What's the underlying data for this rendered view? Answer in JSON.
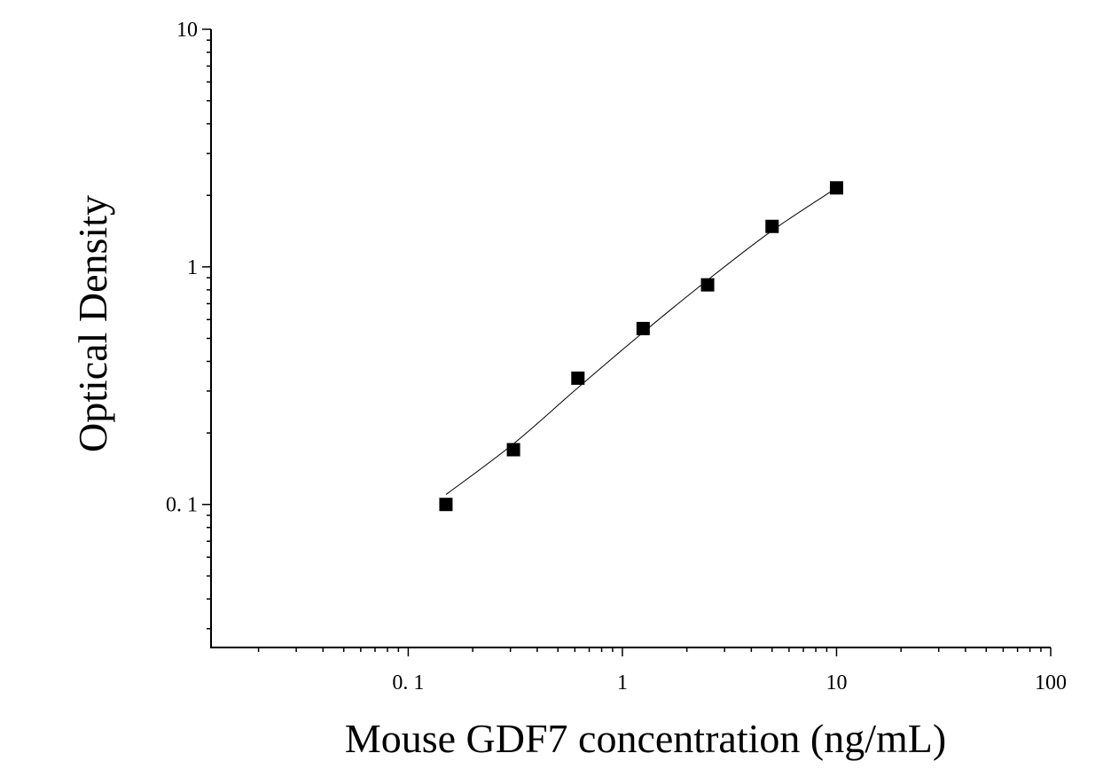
{
  "chart_data": {
    "type": "scatter",
    "title": "",
    "xlabel": "Mouse GDF7 concentration (ng/mL)",
    "ylabel": "Optical Density",
    "xscale": "log",
    "yscale": "log",
    "xlim": [
      0.012,
      100
    ],
    "ylim": [
      0.025,
      10
    ],
    "x_ticks": [
      {
        "value": 0.1,
        "label": "0. 1"
      },
      {
        "value": 1,
        "label": "1"
      },
      {
        "value": 10,
        "label": "10"
      },
      {
        "value": 100,
        "label": "100"
      }
    ],
    "y_ticks": [
      {
        "value": 0.1,
        "label": "0. 1"
      },
      {
        "value": 1,
        "label": "1"
      },
      {
        "value": 10,
        "label": "10"
      }
    ],
    "grid": false,
    "legend": "none",
    "series": [
      {
        "x": [
          0.15,
          0.31,
          0.62,
          1.25,
          2.5,
          5,
          10
        ],
        "y": [
          0.1,
          0.17,
          0.34,
          0.55,
          0.84,
          1.48,
          2.15
        ],
        "marker": "square",
        "color": "#000000"
      }
    ],
    "fit_curve": {
      "x": [
        0.15,
        0.31,
        0.62,
        1.25,
        2.5,
        5,
        10
      ],
      "y": [
        0.11,
        0.18,
        0.31,
        0.53,
        0.88,
        1.42,
        2.15
      ],
      "color": "#000000"
    }
  }
}
